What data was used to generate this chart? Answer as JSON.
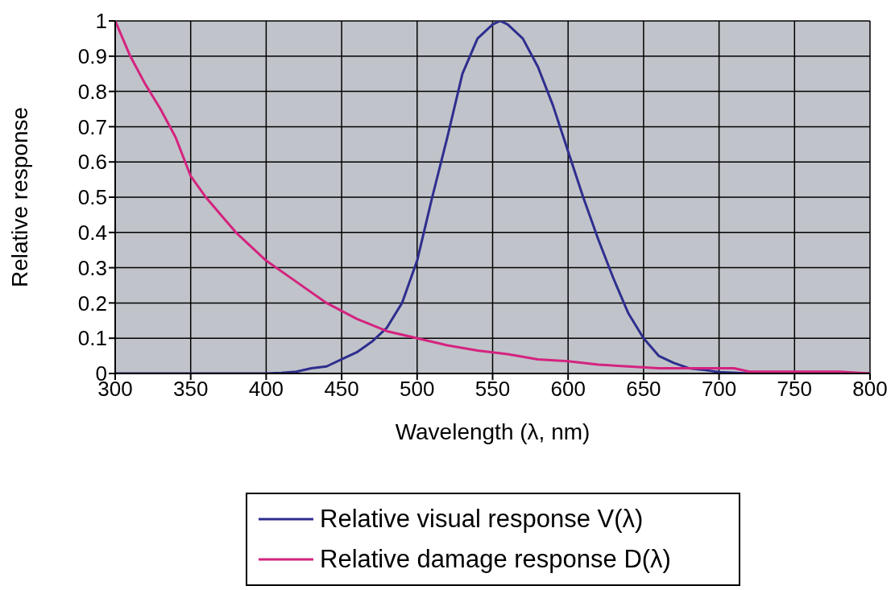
{
  "chart_data": {
    "type": "line",
    "xlabel": "Wavelength (λ, nm)",
    "ylabel": "Relative response",
    "xlim": [
      300,
      800
    ],
    "ylim": [
      0,
      1
    ],
    "xticks": [
      300,
      350,
      400,
      450,
      500,
      550,
      600,
      650,
      700,
      750,
      800
    ],
    "yticks": [
      0,
      0.1,
      0.2,
      0.3,
      0.4,
      0.5,
      0.6,
      0.7,
      0.8,
      0.9,
      1
    ],
    "grid": true,
    "legend": "bottom",
    "marker": "none",
    "line_style": "solid",
    "series": [
      {
        "name": "Relative visual response V(λ)",
        "color": "#2e2e8f",
        "x": [
          300,
          400,
          410,
          420,
          430,
          440,
          450,
          460,
          470,
          480,
          490,
          500,
          510,
          520,
          530,
          540,
          550,
          555,
          560,
          570,
          580,
          590,
          600,
          610,
          620,
          630,
          640,
          650,
          660,
          670,
          680,
          690,
          700,
          720,
          800
        ],
        "values": [
          0,
          0,
          0.002,
          0.005,
          0.015,
          0.02,
          0.04,
          0.06,
          0.09,
          0.13,
          0.2,
          0.32,
          0.5,
          0.67,
          0.85,
          0.95,
          0.99,
          1,
          0.99,
          0.95,
          0.87,
          0.76,
          0.63,
          0.5,
          0.38,
          0.27,
          0.17,
          0.1,
          0.05,
          0.03,
          0.015,
          0.01,
          0.004,
          0,
          0
        ]
      },
      {
        "name": "Relative damage response D(λ)",
        "color": "#d4237f",
        "x": [
          300,
          310,
          320,
          330,
          340,
          350,
          360,
          370,
          380,
          390,
          400,
          420,
          440,
          460,
          480,
          500,
          520,
          540,
          560,
          580,
          600,
          620,
          640,
          660,
          680,
          700,
          710,
          720,
          780,
          800
        ],
        "values": [
          1,
          0.9,
          0.82,
          0.75,
          0.67,
          0.56,
          0.5,
          0.45,
          0.4,
          0.36,
          0.32,
          0.26,
          0.2,
          0.155,
          0.12,
          0.1,
          0.08,
          0.065,
          0.055,
          0.04,
          0.035,
          0.025,
          0.02,
          0.015,
          0.015,
          0.015,
          0.015,
          0.005,
          0.005,
          0
        ]
      }
    ]
  }
}
